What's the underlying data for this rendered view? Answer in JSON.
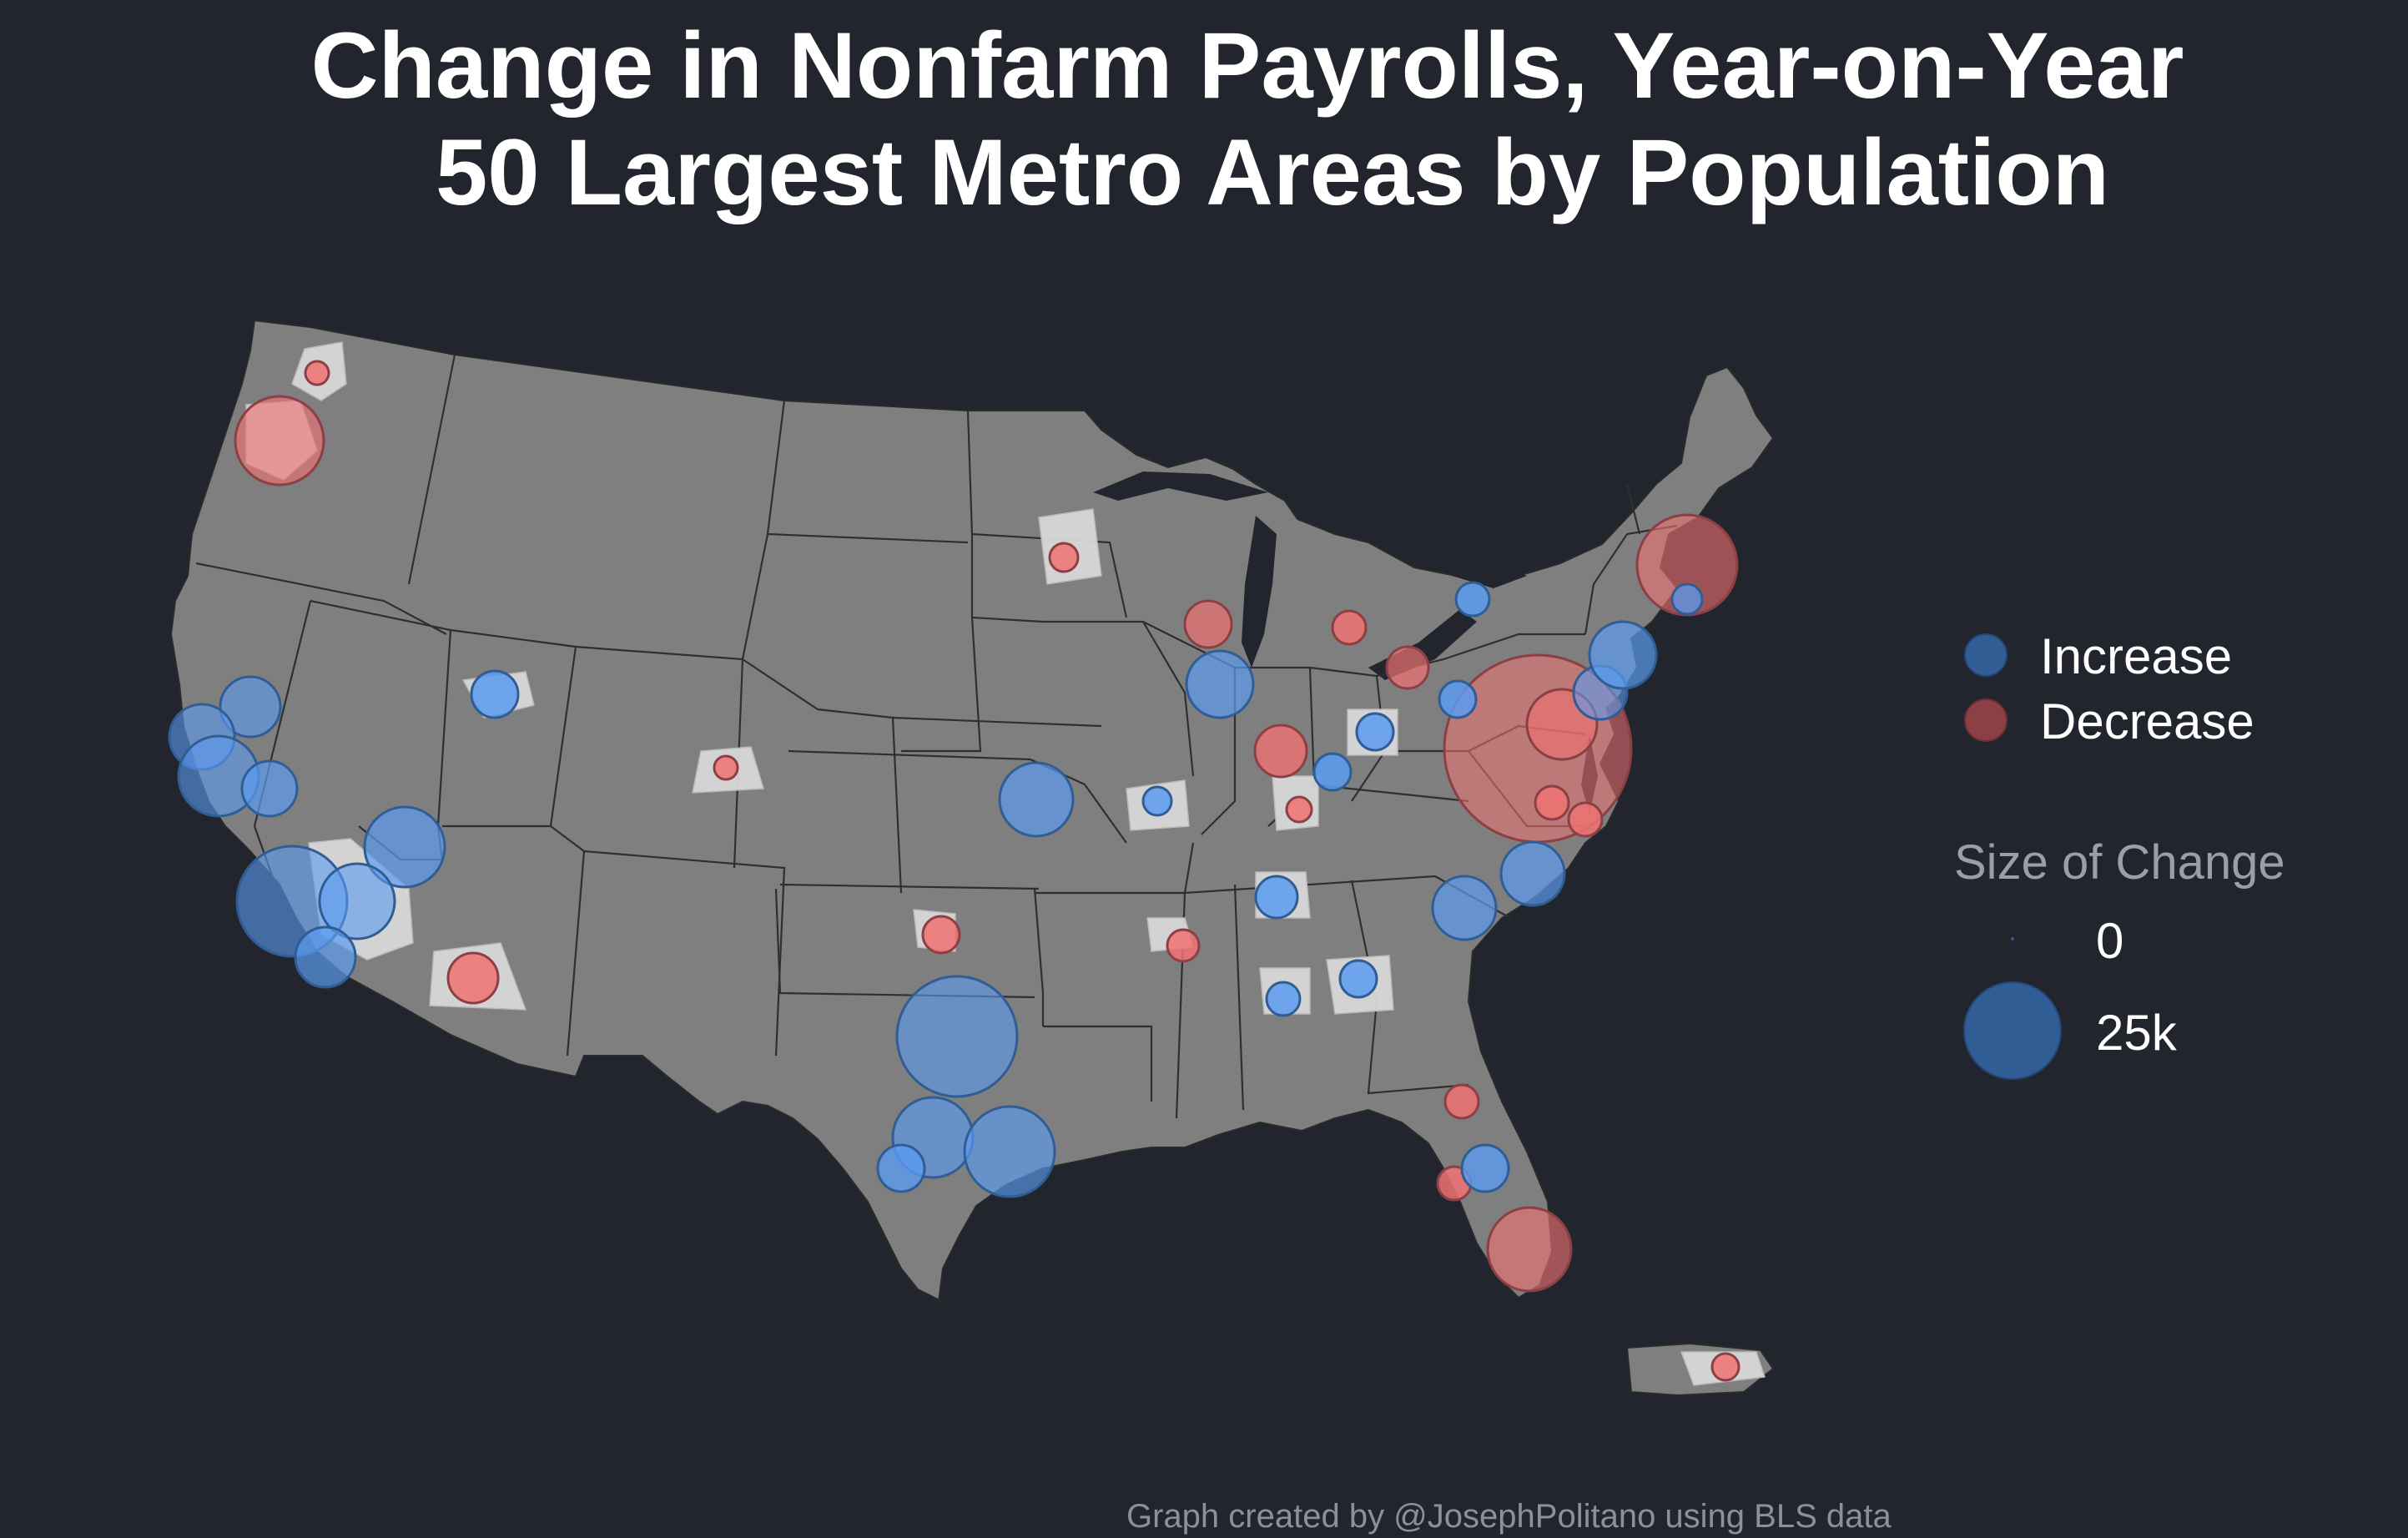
{
  "title": {
    "line1": "Change in Nonfarm Payrolls, Year-on-Year",
    "line2": "50 Largest Metro Areas by Population"
  },
  "legend": {
    "direction_items": [
      {
        "label": "Increase",
        "color": "#2f5d94"
      },
      {
        "label": "Decrease",
        "color": "#8c3f44"
      }
    ],
    "size_title": "Size of Change",
    "size_items": [
      {
        "label": "0",
        "value": 0
      },
      {
        "label": "25k",
        "value": 25000
      }
    ]
  },
  "caption": "Graph created by @JosephPolitano using BLS data",
  "colors": {
    "background": "#22252e",
    "land": "#7f7f7f",
    "state_border": "#2a2a2a",
    "metro_fill": "#d8d8d8",
    "increase": "#5b9bf0",
    "decrease": "#f07272"
  },
  "map_type": "bubble map of metro-area payroll changes over the contiguous United States and Puerto Rico"
}
